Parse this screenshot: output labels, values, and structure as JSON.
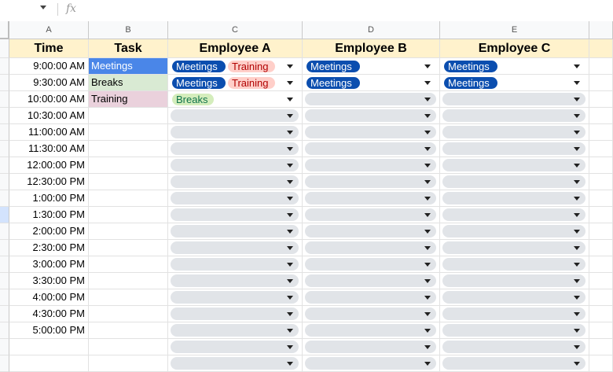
{
  "formula_bar": {
    "fx_label": "fx"
  },
  "columns": [
    "A",
    "B",
    "C",
    "D",
    "E"
  ],
  "headers": {
    "time": "Time",
    "task": "Task",
    "emp_a": "Employee A",
    "emp_b": "Employee B",
    "emp_c": "Employee C"
  },
  "times": [
    "9:00:00 AM",
    "9:30:00 AM",
    "10:00:00 AM",
    "10:30:00 AM",
    "11:00:00 AM",
    "11:30:00 AM",
    "12:00:00 PM",
    "12:30:00 PM",
    "1:00:00 PM",
    "1:30:00 PM",
    "2:00:00 PM",
    "2:30:00 PM",
    "3:00:00 PM",
    "3:30:00 PM",
    "4:00:00 PM",
    "4:30:00 PM",
    "5:00:00 PM"
  ],
  "tasks": [
    {
      "label": "Meetings",
      "color": "#4a86e8"
    },
    {
      "label": "Breaks",
      "color": "#d9ead3"
    },
    {
      "label": "Training",
      "color": "#ead1dc"
    }
  ],
  "chips": {
    "meetings": "Meetings",
    "training": "Training",
    "breaks": "Breaks"
  },
  "assignments": {
    "employee_a": [
      [
        "Meetings",
        "Training"
      ],
      [
        "Meetings",
        "Training"
      ],
      [
        "Breaks"
      ]
    ],
    "employee_b": [
      [
        "Meetings"
      ],
      [
        "Meetings"
      ],
      []
    ],
    "employee_c": [
      [
        "Meetings"
      ],
      [
        "Meetings"
      ],
      []
    ]
  },
  "selected_row_header": 10
}
